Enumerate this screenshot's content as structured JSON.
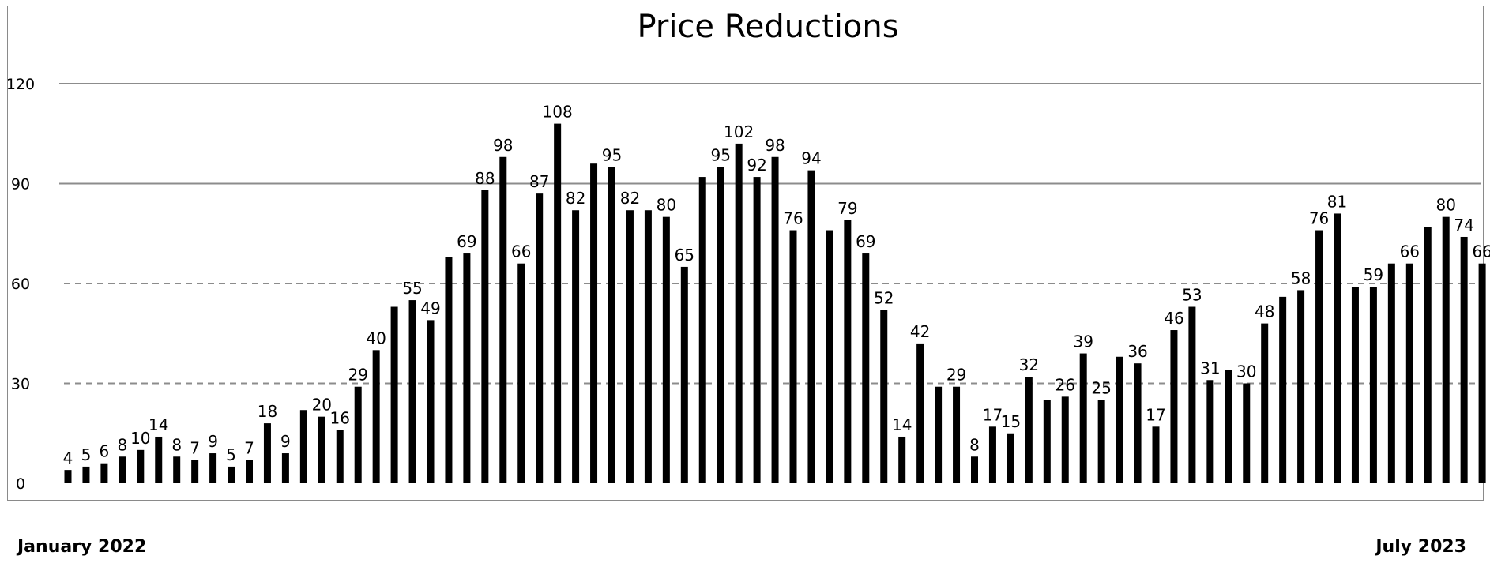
{
  "chart_data": {
    "type": "bar",
    "title": "Price Reductions",
    "xlabel": "",
    "ylabel": "",
    "ylim": [
      0,
      120
    ],
    "yticks": [
      0,
      30,
      60,
      90,
      120
    ],
    "grid": true,
    "bar_color": "#000000",
    "start_label": "January 2022",
    "end_label": "July 2023",
    "values": [
      4,
      5,
      6,
      8,
      10,
      14,
      8,
      7,
      9,
      5,
      7,
      18,
      9,
      22,
      20,
      16,
      29,
      40,
      53,
      55,
      49,
      68,
      69,
      88,
      98,
      66,
      87,
      108,
      82,
      96,
      95,
      82,
      82,
      80,
      65,
      92,
      95,
      102,
      92,
      98,
      76,
      94,
      76,
      79,
      69,
      52,
      14,
      42,
      29,
      29,
      8,
      17,
      15,
      32,
      25,
      26,
      39,
      25,
      38,
      36,
      17,
      46,
      53,
      31,
      34,
      30,
      48,
      56,
      58,
      76,
      81,
      59,
      59,
      66,
      66,
      77,
      80,
      74,
      66
    ],
    "data_labels": [
      "4",
      "5",
      "6",
      "8",
      "10",
      "14",
      "8",
      "7",
      "9",
      "5",
      "7",
      "18",
      "9",
      "",
      "20",
      "16",
      "29",
      "40",
      "",
      "55",
      "49",
      "",
      "69",
      "88",
      "98",
      "66",
      "87",
      "108",
      "82",
      "",
      "95",
      "82",
      "",
      "80",
      "65",
      "",
      "95",
      "102",
      "92",
      "98",
      "76",
      "94",
      "",
      "79",
      "69",
      "52",
      "14",
      "42",
      "",
      "29",
      "8",
      "17",
      "15",
      "32",
      "",
      "26",
      "39",
      "25",
      "",
      "36",
      "17",
      "46",
      "53",
      "31",
      "",
      "30",
      "48",
      "",
      "58",
      "76",
      "81",
      "",
      "59",
      "",
      "66",
      "",
      "80",
      "74",
      "66"
    ]
  }
}
